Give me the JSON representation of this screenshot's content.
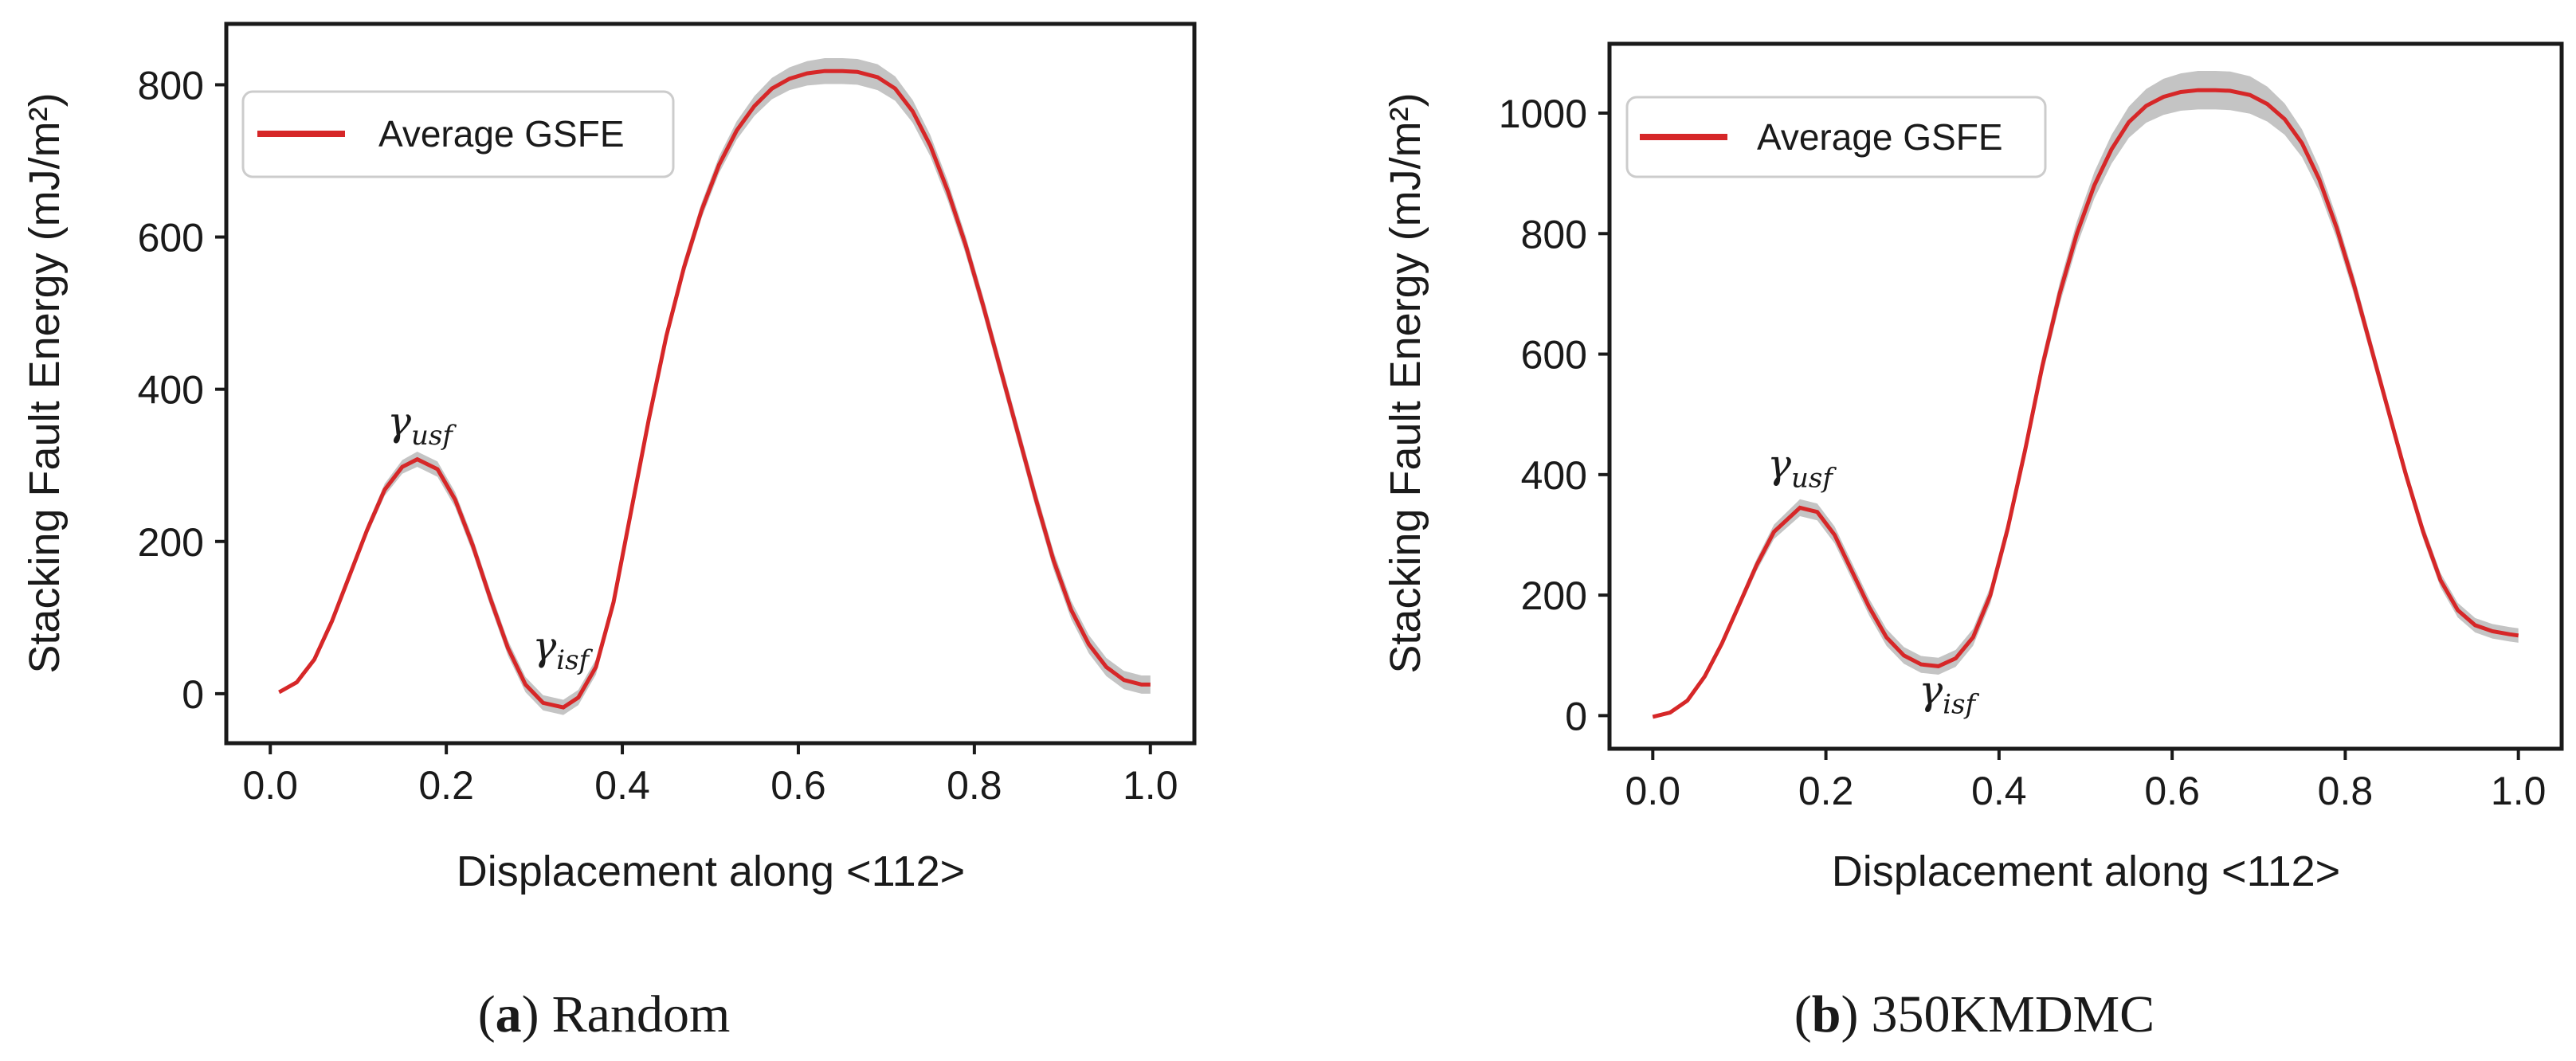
{
  "figure": {
    "band_color": "#c4c4c4",
    "line_color": "#d62728"
  },
  "chart_data": [
    {
      "type": "line",
      "panel_letter": "a",
      "panel_name": "Random",
      "caption_open": "(",
      "caption_close": ")",
      "xlabel": "Displacement along <112>",
      "ylabel": "Stacking Fault Energy (mJ/m²)",
      "xlim": [
        -0.05,
        1.05
      ],
      "ylim": [
        -65,
        880
      ],
      "xticks": [
        0.0,
        0.2,
        0.4,
        0.6,
        0.8,
        1.0
      ],
      "xtick_labels": [
        "0.0",
        "0.2",
        "0.4",
        "0.6",
        "0.8",
        "1.0"
      ],
      "yticks": [
        0,
        200,
        400,
        600,
        800
      ],
      "ytick_labels": [
        "0",
        "200",
        "400",
        "600",
        "800"
      ],
      "legend": {
        "label": "Average GSFE",
        "position": "upper-left"
      },
      "series": [
        {
          "name": "Average GSFE",
          "x": [
            0.01,
            0.03,
            0.05,
            0.07,
            0.09,
            0.11,
            0.13,
            0.15,
            0.167,
            0.19,
            0.21,
            0.23,
            0.25,
            0.27,
            0.29,
            0.31,
            0.333,
            0.35,
            0.37,
            0.39,
            0.41,
            0.43,
            0.45,
            0.47,
            0.49,
            0.51,
            0.53,
            0.55,
            0.57,
            0.59,
            0.61,
            0.63,
            0.65,
            0.667,
            0.69,
            0.71,
            0.73,
            0.75,
            0.77,
            0.79,
            0.81,
            0.83,
            0.85,
            0.87,
            0.89,
            0.91,
            0.93,
            0.95,
            0.97,
            0.99,
            1.0
          ],
          "y": [
            2,
            15,
            45,
            95,
            155,
            215,
            268,
            298,
            308,
            295,
            255,
            195,
            125,
            60,
            12,
            -12,
            -18,
            -5,
            35,
            120,
            240,
            360,
            470,
            560,
            635,
            695,
            740,
            772,
            795,
            808,
            815,
            818,
            818,
            817,
            810,
            795,
            765,
            720,
            660,
            590,
            510,
            425,
            340,
            255,
            175,
            110,
            65,
            35,
            18,
            12,
            12
          ],
          "band_halfwidth": [
            2,
            3,
            4,
            5,
            6,
            7,
            8,
            9,
            10,
            10,
            10,
            10,
            10,
            10,
            10,
            10,
            10,
            10,
            10,
            10,
            10,
            10,
            10,
            10,
            10,
            11,
            12,
            13,
            14,
            15,
            16,
            17,
            17,
            17,
            17,
            16,
            15,
            14,
            13,
            12,
            12,
            12,
            12,
            12,
            12,
            12,
            12,
            12,
            12,
            12,
            12
          ]
        }
      ],
      "annotations": [
        {
          "symbol": "γ",
          "sub": "usf",
          "x": 0.17,
          "y": 340
        },
        {
          "symbol": "γ",
          "sub": "isf",
          "x": 0.33,
          "y": 45
        }
      ]
    },
    {
      "type": "line",
      "panel_letter": "b",
      "panel_name": "350KMDMC",
      "caption_open": "(",
      "caption_close": ")",
      "xlabel": "Displacement along <112>",
      "ylabel": "Stacking Fault Energy (mJ/m²)",
      "xlim": [
        -0.05,
        1.05
      ],
      "ylim": [
        -55,
        1115
      ],
      "xticks": [
        0.0,
        0.2,
        0.4,
        0.6,
        0.8,
        1.0
      ],
      "xtick_labels": [
        "0.0",
        "0.2",
        "0.4",
        "0.6",
        "0.8",
        "1.0"
      ],
      "yticks": [
        0,
        200,
        400,
        600,
        800,
        1000
      ],
      "ytick_labels": [
        "0",
        "200",
        "400",
        "600",
        "800",
        "1000"
      ],
      "legend": {
        "label": "Average GSFE",
        "position": "upper-left"
      },
      "series": [
        {
          "name": "Average GSFE",
          "x": [
            0.0,
            0.02,
            0.04,
            0.06,
            0.08,
            0.1,
            0.12,
            0.14,
            0.17,
            0.19,
            0.21,
            0.23,
            0.25,
            0.27,
            0.29,
            0.31,
            0.33,
            0.35,
            0.37,
            0.39,
            0.41,
            0.43,
            0.45,
            0.47,
            0.49,
            0.51,
            0.53,
            0.55,
            0.57,
            0.59,
            0.61,
            0.63,
            0.65,
            0.667,
            0.69,
            0.71,
            0.73,
            0.75,
            0.77,
            0.79,
            0.81,
            0.83,
            0.85,
            0.87,
            0.89,
            0.91,
            0.93,
            0.95,
            0.97,
            0.99,
            1.0
          ],
          "y": [
            -2,
            5,
            25,
            65,
            120,
            185,
            250,
            305,
            345,
            338,
            300,
            240,
            180,
            130,
            100,
            85,
            82,
            95,
            130,
            200,
            310,
            440,
            580,
            700,
            800,
            880,
            940,
            985,
            1012,
            1027,
            1035,
            1038,
            1038,
            1037,
            1030,
            1015,
            990,
            950,
            890,
            810,
            715,
            610,
            505,
            400,
            305,
            225,
            175,
            150,
            140,
            135,
            133
          ],
          "band_halfwidth": [
            2,
            3,
            4,
            5,
            6,
            8,
            10,
            12,
            14,
            14,
            14,
            14,
            14,
            14,
            14,
            14,
            14,
            14,
            14,
            14,
            14,
            15,
            16,
            18,
            20,
            22,
            24,
            26,
            28,
            30,
            31,
            32,
            32,
            32,
            31,
            29,
            26,
            23,
            20,
            18,
            16,
            14,
            13,
            12,
            12,
            12,
            12,
            12,
            12,
            12,
            12
          ]
        }
      ],
      "annotations": [
        {
          "symbol": "γ",
          "sub": "usf",
          "x": 0.17,
          "y": 395
        },
        {
          "symbol": "γ",
          "sub": "isf",
          "x": 0.34,
          "y": 20
        }
      ]
    }
  ]
}
